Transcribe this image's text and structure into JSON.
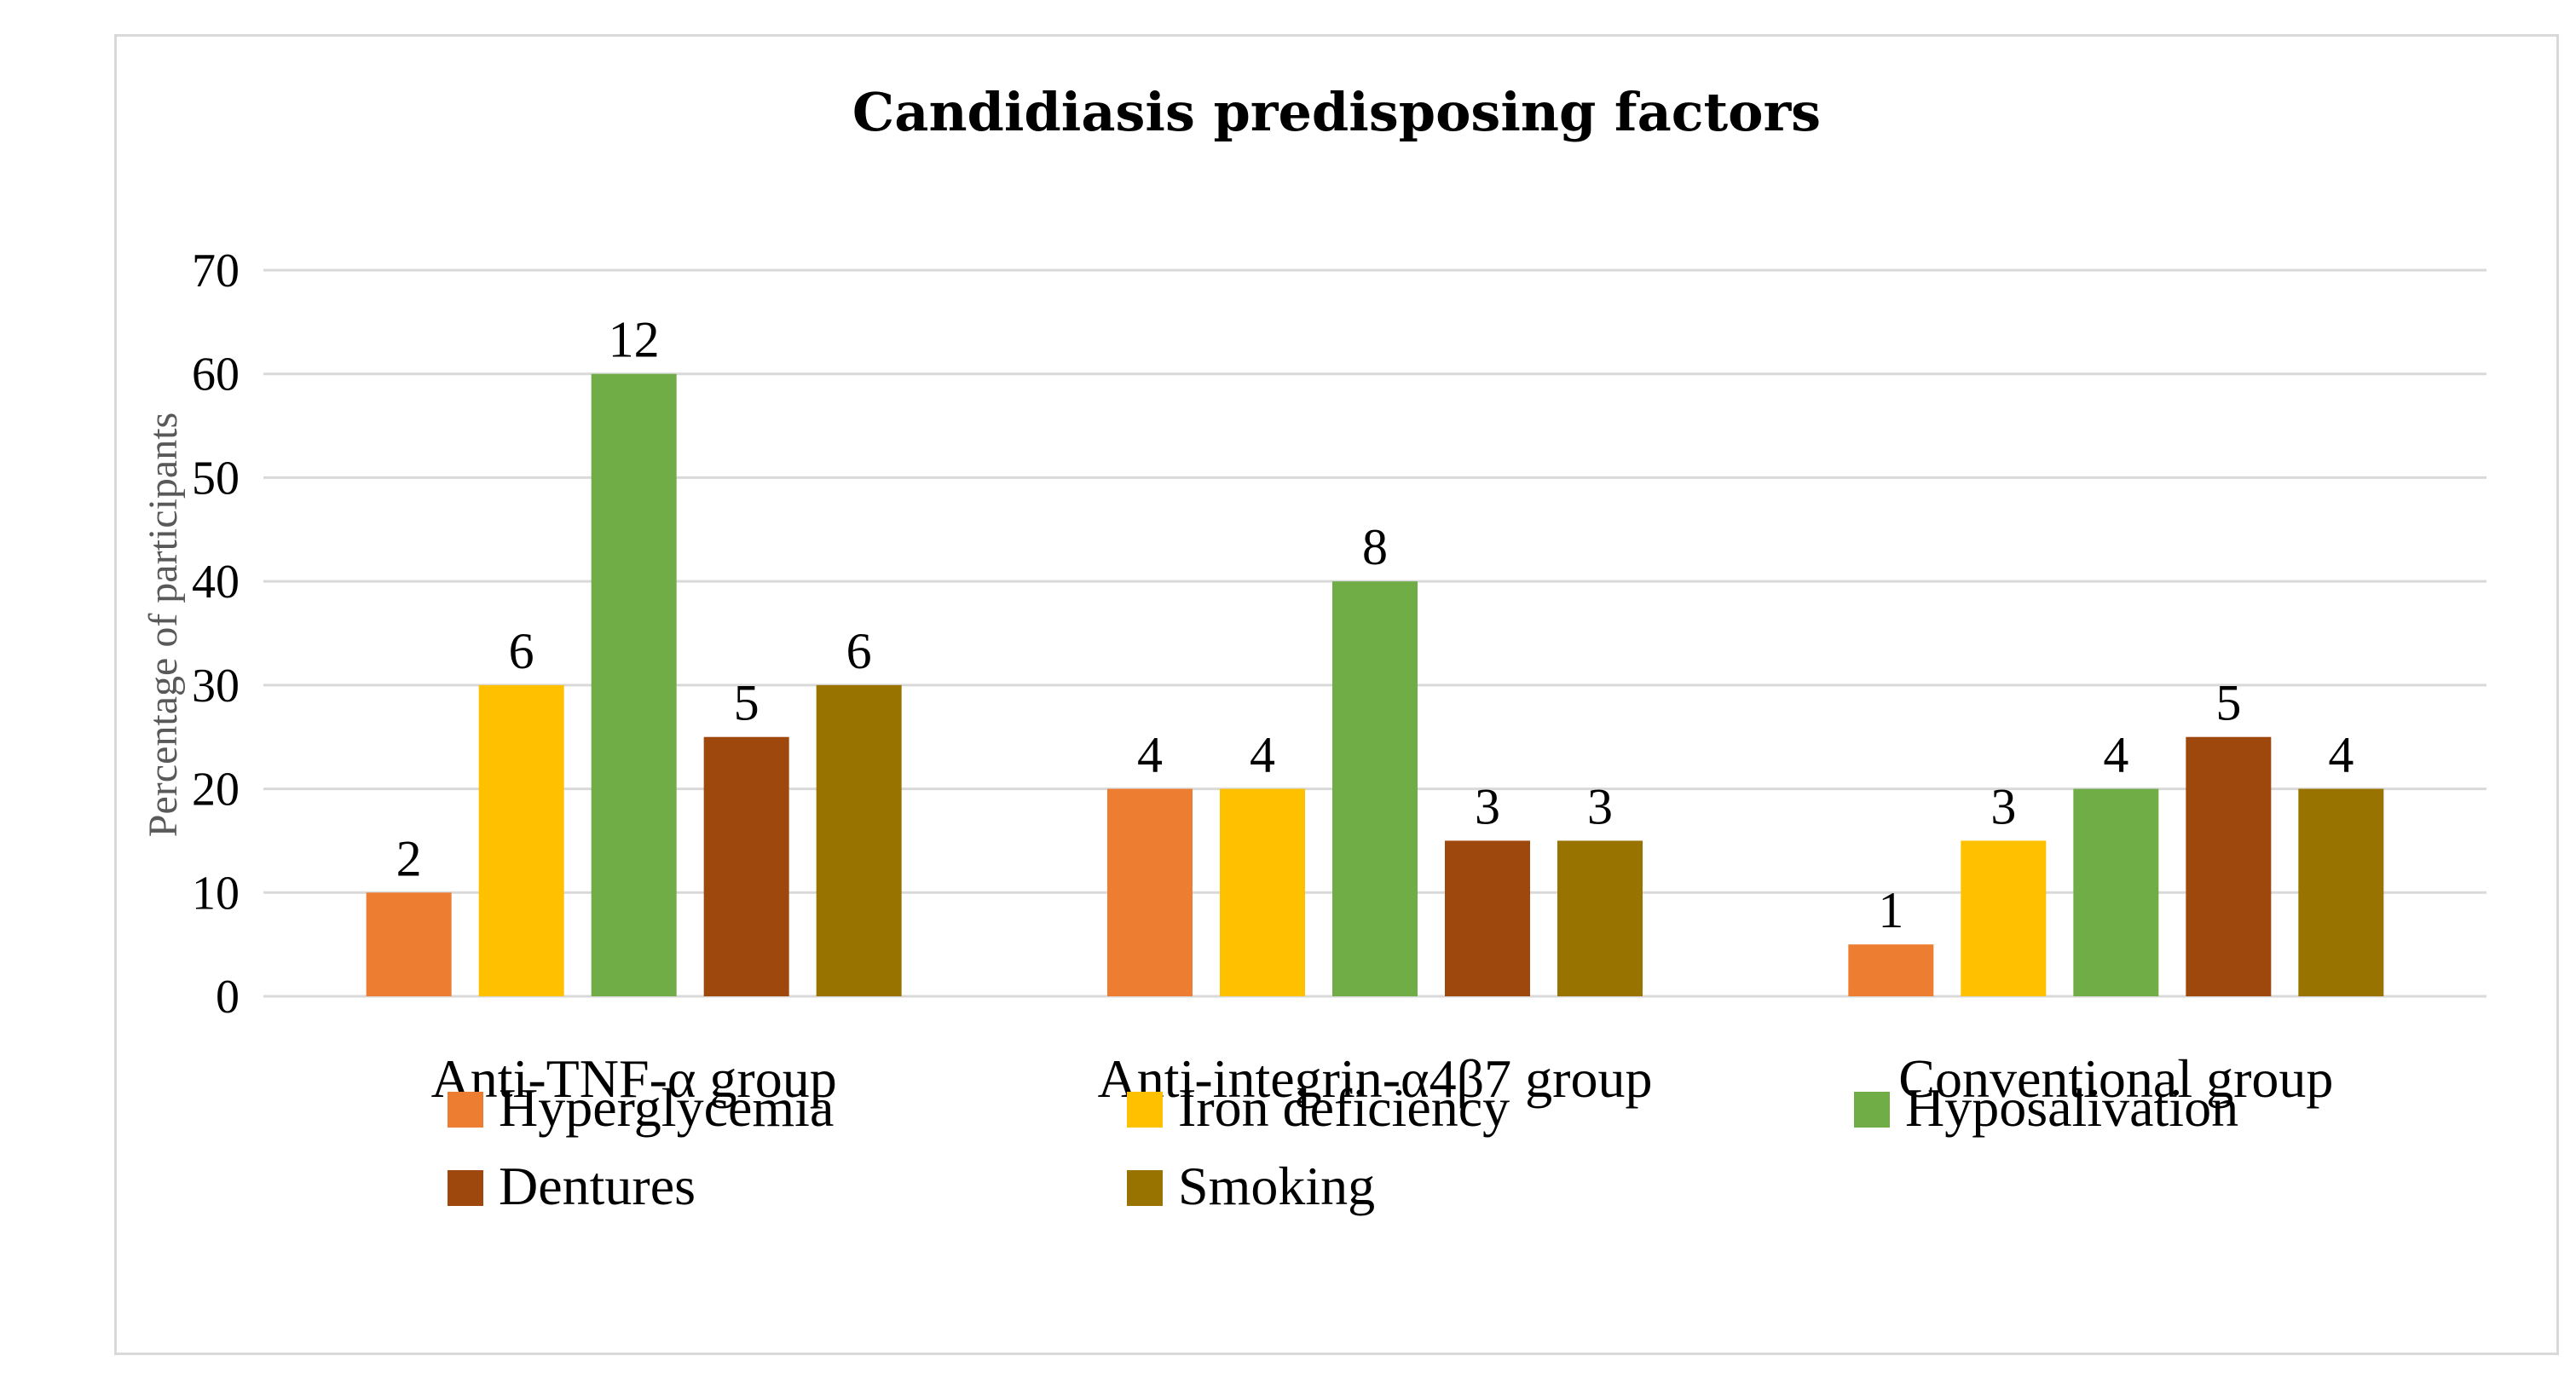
{
  "chart_data": {
    "type": "bar",
    "title": "Candidiasis predisposing factors",
    "xlabel": "",
    "ylabel": "Percentage of participants",
    "ylim": [
      0,
      70
    ],
    "yticks": [
      0,
      10,
      20,
      30,
      40,
      50,
      60,
      70
    ],
    "grid": true,
    "legend_position": "bottom",
    "categories": [
      "Anti-TNF-α group",
      "Anti-integrin-α4β7 group",
      "Conventional group"
    ],
    "series": [
      {
        "name": "Hyperglycemia",
        "color": "#ed7d31",
        "values": [
          10,
          20,
          5
        ],
        "labels": [
          "2",
          "4",
          "1"
        ]
      },
      {
        "name": "Iron deficiency",
        "color": "#ffc000",
        "values": [
          30,
          20,
          15
        ],
        "labels": [
          "6",
          "4",
          "3"
        ]
      },
      {
        "name": "Hyposalivation",
        "color": "#70ad47",
        "values": [
          60,
          40,
          20
        ],
        "labels": [
          "12",
          "8",
          "4"
        ]
      },
      {
        "name": "Dentures",
        "color": "#9e480e",
        "values": [
          25,
          15,
          25
        ],
        "labels": [
          "5",
          "3",
          "5"
        ]
      },
      {
        "name": "Smoking",
        "color": "#997300",
        "values": [
          30,
          15,
          20
        ],
        "labels": [
          "6",
          "3",
          "4"
        ]
      }
    ]
  }
}
